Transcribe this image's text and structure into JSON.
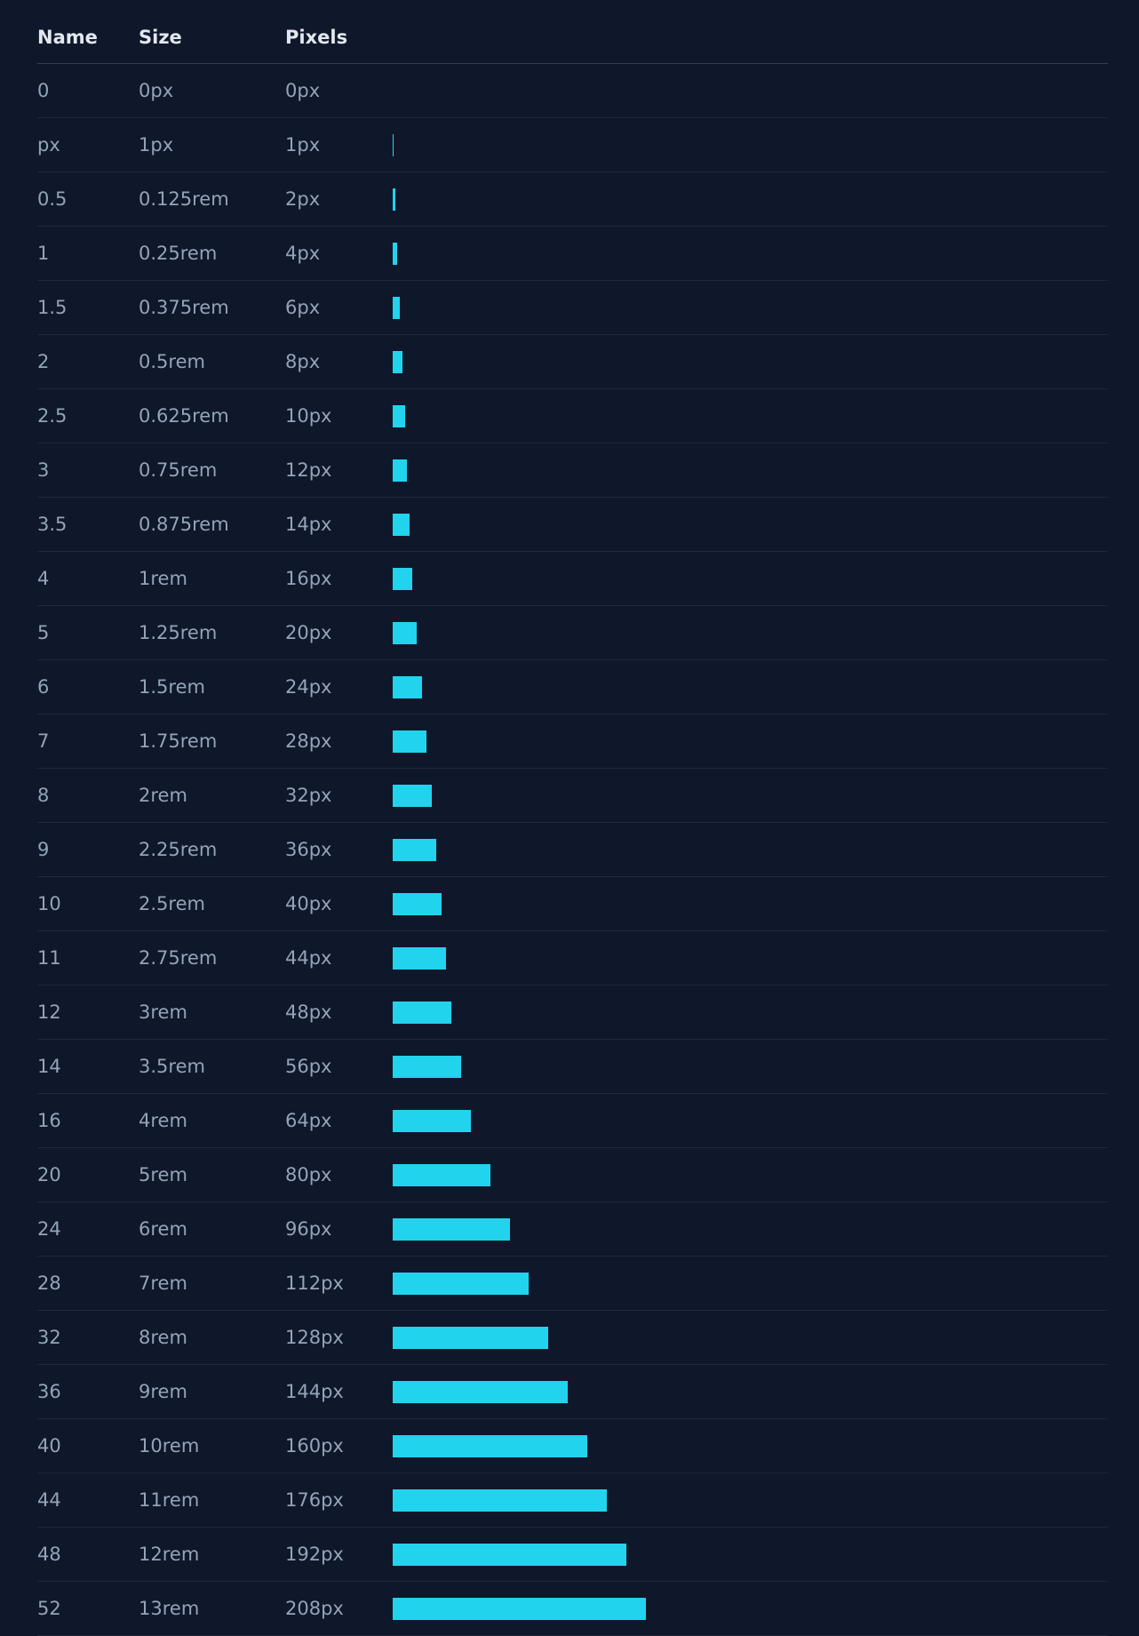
{
  "table": {
    "headers": {
      "name": "Name",
      "size": "Size",
      "pixels": "Pixels"
    },
    "rows": [
      {
        "name": "0",
        "size": "0px",
        "pixels": "0px",
        "value": 0
      },
      {
        "name": "px",
        "size": "1px",
        "pixels": "1px",
        "value": 1
      },
      {
        "name": "0.5",
        "size": "0.125rem",
        "pixels": "2px",
        "value": 2
      },
      {
        "name": "1",
        "size": "0.25rem",
        "pixels": "4px",
        "value": 4
      },
      {
        "name": "1.5",
        "size": "0.375rem",
        "pixels": "6px",
        "value": 6
      },
      {
        "name": "2",
        "size": "0.5rem",
        "pixels": "8px",
        "value": 8
      },
      {
        "name": "2.5",
        "size": "0.625rem",
        "pixels": "10px",
        "value": 10
      },
      {
        "name": "3",
        "size": "0.75rem",
        "pixels": "12px",
        "value": 12
      },
      {
        "name": "3.5",
        "size": "0.875rem",
        "pixels": "14px",
        "value": 14
      },
      {
        "name": "4",
        "size": "1rem",
        "pixels": "16px",
        "value": 16
      },
      {
        "name": "5",
        "size": "1.25rem",
        "pixels": "20px",
        "value": 20
      },
      {
        "name": "6",
        "size": "1.5rem",
        "pixels": "24px",
        "value": 24
      },
      {
        "name": "7",
        "size": "1.75rem",
        "pixels": "28px",
        "value": 28
      },
      {
        "name": "8",
        "size": "2rem",
        "pixels": "32px",
        "value": 32
      },
      {
        "name": "9",
        "size": "2.25rem",
        "pixels": "36px",
        "value": 36
      },
      {
        "name": "10",
        "size": "2.5rem",
        "pixels": "40px",
        "value": 40
      },
      {
        "name": "11",
        "size": "2.75rem",
        "pixels": "44px",
        "value": 44
      },
      {
        "name": "12",
        "size": "3rem",
        "pixels": "48px",
        "value": 48
      },
      {
        "name": "14",
        "size": "3.5rem",
        "pixels": "56px",
        "value": 56
      },
      {
        "name": "16",
        "size": "4rem",
        "pixels": "64px",
        "value": 64
      },
      {
        "name": "20",
        "size": "5rem",
        "pixels": "80px",
        "value": 80
      },
      {
        "name": "24",
        "size": "6rem",
        "pixels": "96px",
        "value": 96
      },
      {
        "name": "28",
        "size": "7rem",
        "pixels": "112px",
        "value": 112
      },
      {
        "name": "32",
        "size": "8rem",
        "pixels": "128px",
        "value": 128
      },
      {
        "name": "36",
        "size": "9rem",
        "pixels": "144px",
        "value": 144
      },
      {
        "name": "40",
        "size": "10rem",
        "pixels": "160px",
        "value": 160
      },
      {
        "name": "44",
        "size": "11rem",
        "pixels": "176px",
        "value": 176
      },
      {
        "name": "48",
        "size": "12rem",
        "pixels": "192px",
        "value": 192
      },
      {
        "name": "52",
        "size": "13rem",
        "pixels": "208px",
        "value": 208
      }
    ]
  },
  "colors": {
    "background": "#0f172a",
    "bar": "#22d3ee",
    "header_text": "#e2e8f0",
    "cell_text": "#94a3b8"
  }
}
